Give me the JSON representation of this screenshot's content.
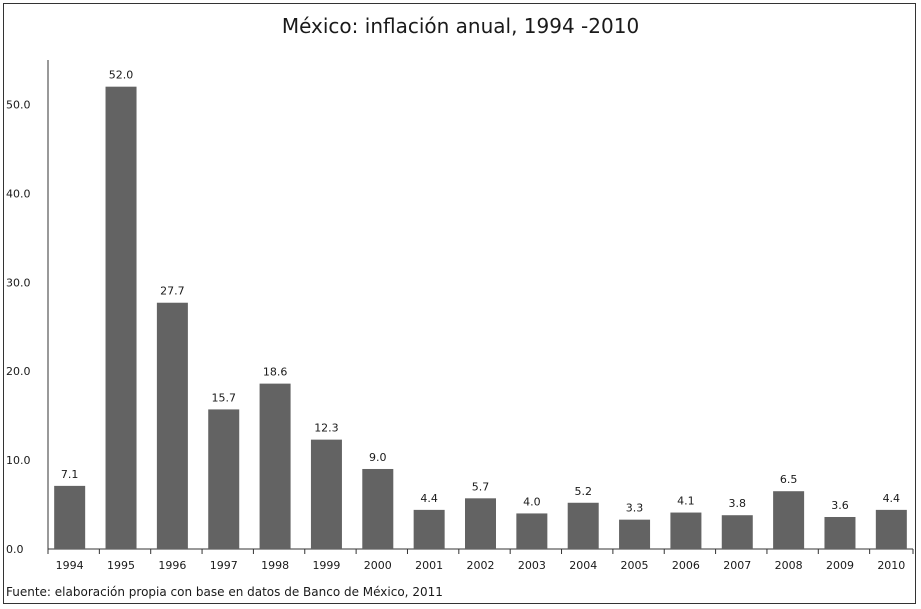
{
  "chart_data": {
    "type": "bar",
    "title": "México: inflación anual, 1994 -2010",
    "categories": [
      "1994",
      "1995",
      "1996",
      "1997",
      "1998",
      "1999",
      "2000",
      "2001",
      "2002",
      "2003",
      "2004",
      "2005",
      "2006",
      "2007",
      "2008",
      "2009",
      "2010"
    ],
    "values": [
      7.1,
      52.0,
      27.7,
      15.7,
      18.6,
      12.3,
      9.0,
      4.4,
      5.7,
      4.0,
      5.2,
      3.3,
      4.1,
      3.8,
      6.5,
      3.6,
      4.4
    ],
    "value_labels": [
      "7.1",
      "52.0",
      "27.7",
      "15.7",
      "18.6",
      "12.3",
      "9.0",
      "4.4",
      "5.7",
      "4.0",
      "5.2",
      "3.3",
      "4.1",
      "3.8",
      "6.5",
      "3.6",
      "4.4"
    ],
    "yticks": [
      "0.0",
      "10.0",
      "20.0",
      "30.0",
      "40.0",
      "50.0"
    ],
    "ytick_values": [
      0,
      10,
      20,
      30,
      40,
      50
    ],
    "ylim": [
      0,
      55
    ],
    "xlabel": "",
    "ylabel": "",
    "grid": false,
    "legend": "none",
    "bar_color": "#636363",
    "source": "Fuente: elaboración propia con base en datos de Banco de México, 2011"
  }
}
